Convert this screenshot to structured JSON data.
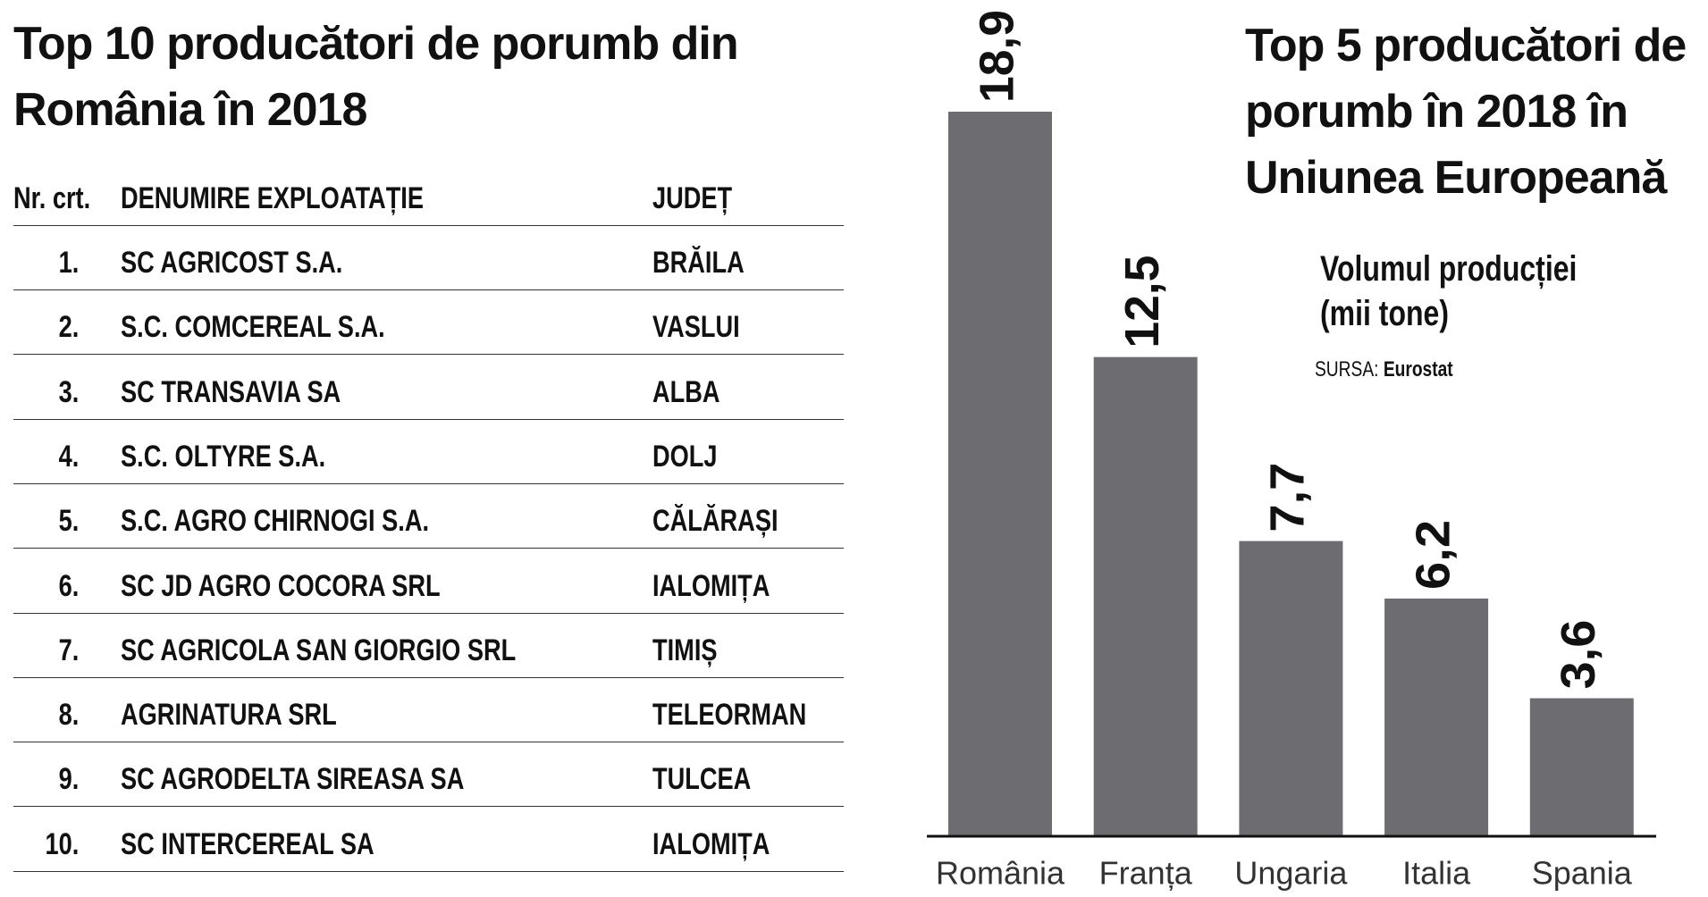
{
  "table": {
    "title": "Top 10 producători de porumb din România în 2018",
    "header": [
      "Nr. crt.",
      "DENUMIRE EXPLOATAȚIE",
      "JUDEȚ"
    ],
    "rows": [
      [
        "1.",
        "SC AGRICOST S.A.",
        "BRĂILA"
      ],
      [
        "2.",
        "S.C. COMCEREAL S.A.",
        "VASLUI"
      ],
      [
        "3.",
        "SC TRANSAVIA SA",
        "ALBA"
      ],
      [
        "4.",
        "S.C. OLTYRE S.A.",
        "DOLJ"
      ],
      [
        "5.",
        "S.C. AGRO CHIRNOGI S.A.",
        "CĂLĂRAȘI"
      ],
      [
        "6.",
        "SC JD AGRO COCORA SRL",
        "IALOMIȚA"
      ],
      [
        "7.",
        "SC AGRICOLA SAN GIORGIO SRL",
        "TIMIȘ"
      ],
      [
        "8.",
        "AGRINATURA SRL",
        "TELEORMAN"
      ],
      [
        "9.",
        "SC AGRODELTA SIREASA SA",
        "TULCEA"
      ],
      [
        "10.",
        "SC INTERCEREAL SA",
        "IALOMIȚA"
      ]
    ]
  },
  "chart_data": {
    "type": "bar",
    "title": "Top 5 producători de porumb în 2018 în Uniunea Europeană",
    "subtitle": "Volumul producției (mii tone)",
    "source_label": "SURSA:",
    "source": "Eurostat",
    "categories": [
      "România",
      "Franța",
      "Ungaria",
      "Italia",
      "Spania"
    ],
    "values": [
      18.9,
      12.5,
      7.7,
      6.2,
      3.6
    ],
    "value_labels": [
      "18,9",
      "12,5",
      "7,7",
      "6,2",
      "3,6"
    ],
    "color": "#6d6d71"
  }
}
